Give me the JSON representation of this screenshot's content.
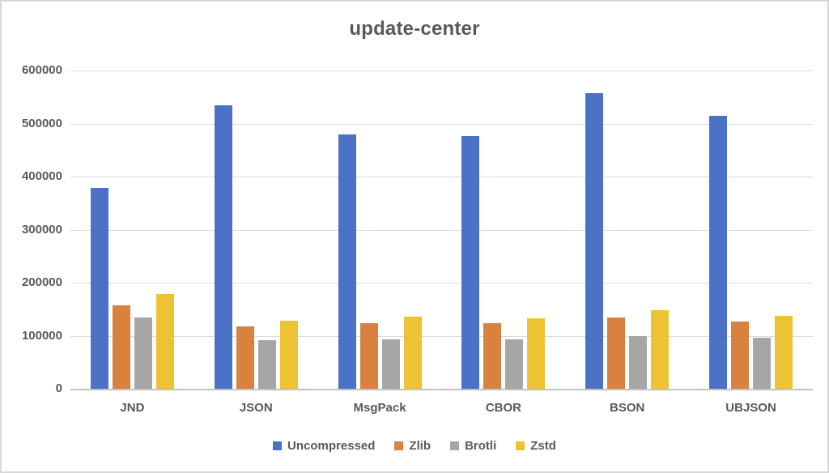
{
  "chart_data": {
    "type": "bar",
    "title": "update-center",
    "categories": [
      "JND",
      "JSON",
      "MsgPack",
      "CBOR",
      "BSON",
      "UBJSON"
    ],
    "series": [
      {
        "name": "Uncompressed",
        "color": "#4C72C6",
        "values": [
          378000,
          534000,
          479000,
          476000,
          558000,
          515000
        ]
      },
      {
        "name": "Zlib",
        "color": "#D9813F",
        "values": [
          158000,
          118000,
          124000,
          124000,
          135000,
          127000
        ]
      },
      {
        "name": "Brotli",
        "color": "#A6A6A6",
        "values": [
          134000,
          91000,
          93000,
          93000,
          100000,
          96000
        ]
      },
      {
        "name": "Zstd",
        "color": "#EDC233",
        "values": [
          179000,
          128000,
          136000,
          133000,
          148000,
          137000
        ]
      }
    ],
    "ylim": [
      0,
      600000
    ],
    "ytick_step": 100000,
    "ytick_labels": [
      "600000",
      "500000",
      "400000",
      "300000",
      "200000",
      "100000",
      "0"
    ],
    "grid": true,
    "legend_position": "bottom",
    "axis_text_color": "#595959",
    "gridline_color": "#dcdcdc"
  }
}
